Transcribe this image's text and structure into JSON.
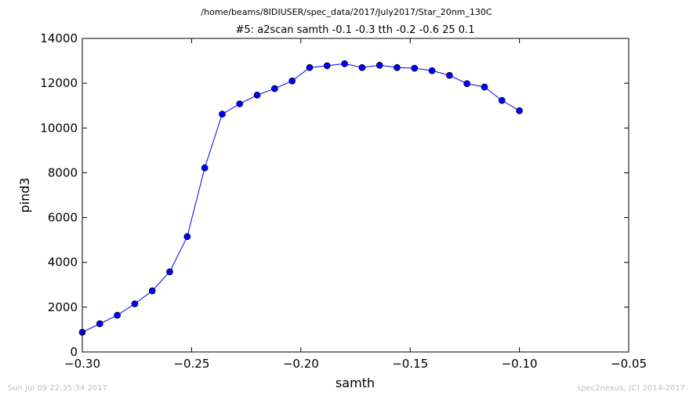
{
  "suptitle": "/home/beams/8IDIUSER/spec_data/2017/July2017/Star_20nm_130C",
  "footer_left": "Sun Jul 09 22:35:34 2017",
  "footer_right": "spec2nexus, (C) 2014-2017",
  "chart_data": {
    "type": "line",
    "title": "#5: a2scan  samth -0.1 -0.3  tth -0.2 -0.6  25 0.1",
    "xlabel": "samth",
    "ylabel": "pind3",
    "xlim": [
      -0.3,
      -0.05
    ],
    "ylim": [
      0,
      14000
    ],
    "xticks": [
      -0.3,
      -0.25,
      -0.2,
      -0.15,
      -0.1,
      -0.05
    ],
    "xtick_labels": [
      "−0.30",
      "−0.25",
      "−0.20",
      "−0.15",
      "−0.10",
      "−0.05"
    ],
    "yticks": [
      0,
      2000,
      4000,
      6000,
      8000,
      10000,
      12000,
      14000
    ],
    "ytick_labels": [
      "0",
      "2000",
      "4000",
      "6000",
      "8000",
      "10000",
      "12000",
      "14000"
    ],
    "grid": false,
    "marker": "circle",
    "color": "#0000ff",
    "series": [
      {
        "x": [
          -0.3,
          -0.292,
          -0.284,
          -0.276,
          -0.268,
          -0.26,
          -0.252,
          -0.244,
          -0.236,
          -0.228,
          -0.22,
          -0.212,
          -0.204,
          -0.196,
          -0.188,
          -0.18,
          -0.172,
          -0.164,
          -0.156,
          -0.148,
          -0.14,
          -0.132,
          -0.124,
          -0.116,
          -0.108,
          -0.1
        ],
        "y": [
          880,
          1260,
          1640,
          2150,
          2730,
          3580,
          5150,
          8220,
          10620,
          11080,
          11470,
          11760,
          12100,
          12700,
          12780,
          12870,
          12700,
          12800,
          12700,
          12670,
          12560,
          12350,
          11980,
          11830,
          11230,
          10770
        ]
      }
    ]
  }
}
